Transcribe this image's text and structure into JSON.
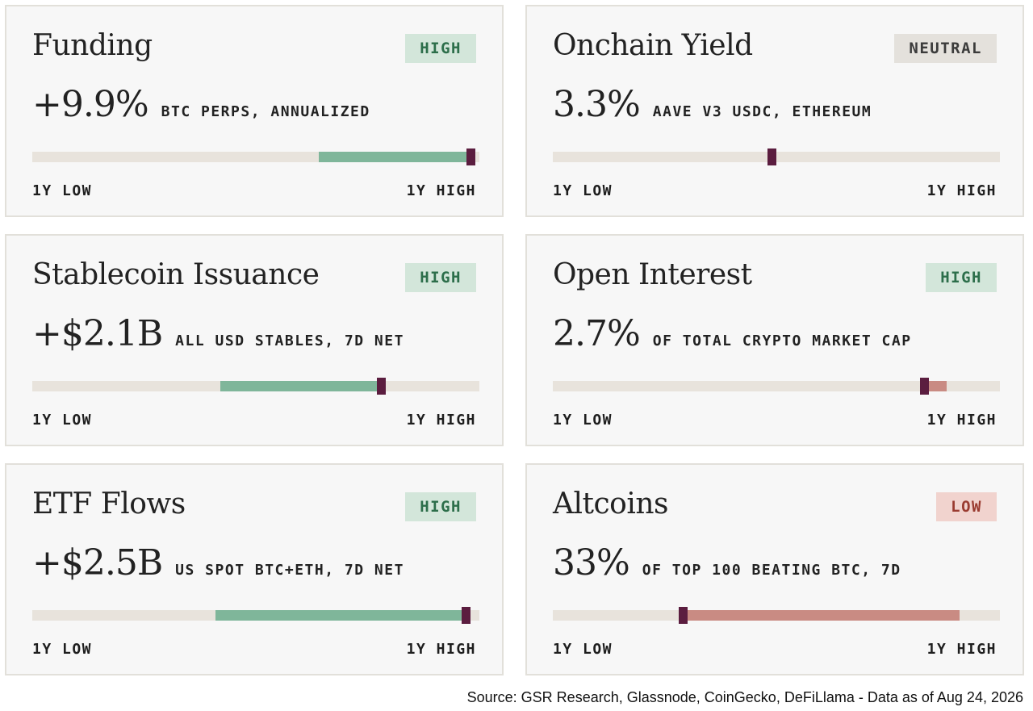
{
  "cards": [
    {
      "title": "Funding",
      "badge": "HIGH",
      "status": "high",
      "value": "+9.9%",
      "subtitle": "BTC PERPS, ANNUALIZED",
      "low_label": "1Y LOW",
      "high_label": "1Y HIGH",
      "range_fill": {
        "from": 0.64,
        "to": 0.98,
        "color": "green"
      },
      "marker": 0.98
    },
    {
      "title": "Onchain Yield",
      "badge": "NEUTRAL",
      "status": "neutral",
      "value": "3.3%",
      "subtitle": "AAVE V3 USDC, ETHEREUM",
      "low_label": "1Y LOW",
      "high_label": "1Y HIGH",
      "range_fill": null,
      "marker": 0.49
    },
    {
      "title": "Stablecoin Issuance",
      "badge": "HIGH",
      "status": "high",
      "value": "+$2.1B",
      "subtitle": "ALL USD STABLES, 7D NET",
      "low_label": "1Y LOW",
      "high_label": "1Y HIGH",
      "range_fill": {
        "from": 0.42,
        "to": 0.78,
        "color": "green"
      },
      "marker": 0.78
    },
    {
      "title": "Open Interest",
      "badge": "HIGH",
      "status": "high",
      "value": "2.7%",
      "subtitle": "OF TOTAL CRYPTO MARKET CAP",
      "low_label": "1Y LOW",
      "high_label": "1Y HIGH",
      "range_fill": {
        "from": 0.83,
        "to": 0.88,
        "color": "red"
      },
      "marker": 0.83
    },
    {
      "title": "ETF Flows",
      "badge": "HIGH",
      "status": "high",
      "value": "+$2.5B",
      "subtitle": "US SPOT BTC+ETH, 7D NET",
      "low_label": "1Y LOW",
      "high_label": "1Y HIGH",
      "range_fill": {
        "from": 0.41,
        "to": 0.97,
        "color": "green"
      },
      "marker": 0.97
    },
    {
      "title": "Altcoins",
      "badge": "LOW",
      "status": "low",
      "value": "33%",
      "subtitle": "OF TOP 100 BEATING BTC, 7D",
      "low_label": "1Y LOW",
      "high_label": "1Y HIGH",
      "range_fill": {
        "from": 0.29,
        "to": 0.91,
        "color": "red"
      },
      "marker": 0.29
    }
  ],
  "source": "Source: GSR Research, Glassnode, CoinGecko, DeFiLlama - Data as of Aug 24, 2026",
  "colors": {
    "high_bg": "#d3e6da",
    "neutral_bg": "#e4e1dc",
    "low_bg": "#f1d3ce",
    "green_fill": "#7fb69a",
    "red_fill": "#c98b83",
    "marker": "#5b1d3f"
  }
}
